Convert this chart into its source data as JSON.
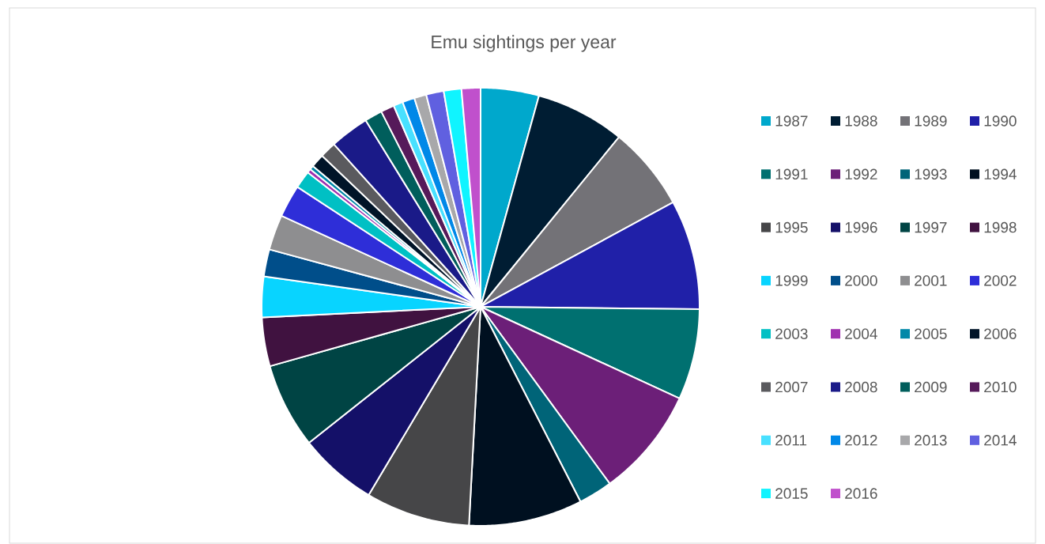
{
  "chart_data": {
    "type": "pie",
    "title": "Emu sightings per year",
    "categories": [
      "1987",
      "1988",
      "1989",
      "1990",
      "1991",
      "1992",
      "1993",
      "1994",
      "1995",
      "1996",
      "1997",
      "1998",
      "1999",
      "2000",
      "2001",
      "2002",
      "2003",
      "2004",
      "2005",
      "2006",
      "2007",
      "2008",
      "2009",
      "2010",
      "2011",
      "2012",
      "2013",
      "2014",
      "2015",
      "2016"
    ],
    "values": [
      4.3,
      6.6,
      6.2,
      8.1,
      6.7,
      8.1,
      2.5,
      8.4,
      7.7,
      5.8,
      6.3,
      3.6,
      3.0,
      2.0,
      2.6,
      2.4,
      1.3,
      0.3,
      0.3,
      1.0,
      1.2,
      2.9,
      1.3,
      1.0,
      0.7,
      0.9,
      0.9,
      1.3,
      1.3,
      1.4
    ],
    "colors": [
      "#00a8cc",
      "#001d33",
      "#737277",
      "#2020a8",
      "#007070",
      "#6c1f78",
      "#006478",
      "#001020",
      "#464648",
      "#141068",
      "#004444",
      "#401240",
      "#08d4ff",
      "#004e8a",
      "#8e8e90",
      "#2e2ed8",
      "#00c0c4",
      "#a030b0",
      "#0088a8",
      "#001428",
      "#5a5a5e",
      "#1a1a88",
      "#005e5c",
      "#561a5a",
      "#48e0ff",
      "#0088e8",
      "#a8a8aa",
      "#6060e0",
      "#10f4ff",
      "#c050cc"
    ],
    "legend": "right"
  }
}
